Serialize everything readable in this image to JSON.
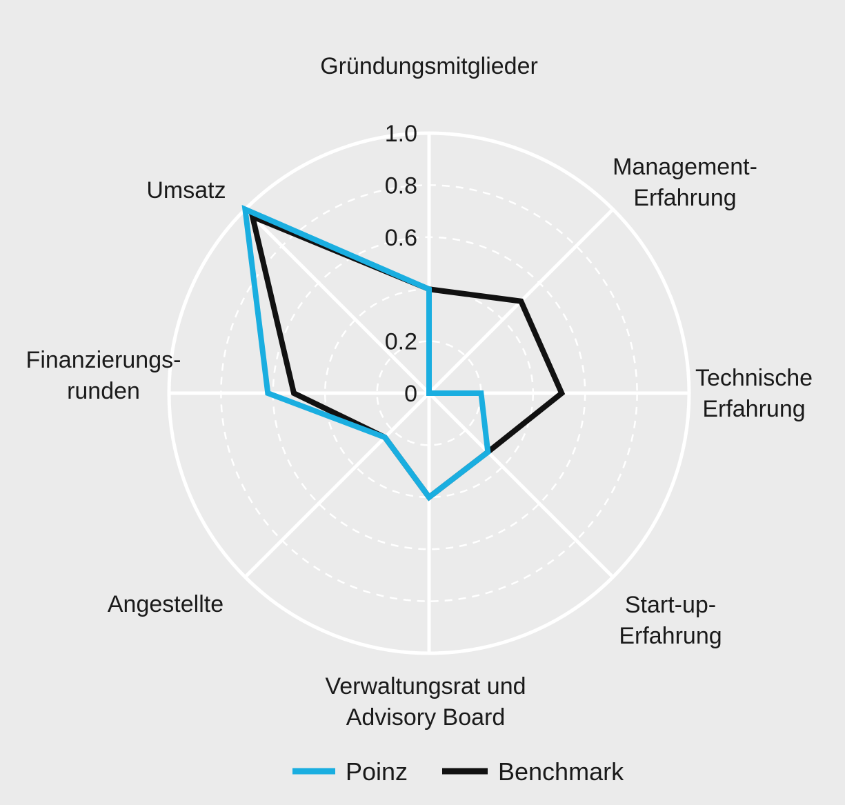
{
  "chart_data": {
    "type": "radar",
    "axes": [
      [
        "Gründungsmitglieder"
      ],
      [
        "Management-",
        "Erfahrung"
      ],
      [
        "Technische",
        "Erfahrung"
      ],
      [
        "Start-up-",
        "Erfahrung"
      ],
      [
        "Verwaltungsrat und",
        "Advisory Board"
      ],
      [
        "Angestellte"
      ],
      [
        "Finanzierungs-",
        "runden"
      ],
      [
        "Umsatz"
      ]
    ],
    "ticks": [
      "0",
      "0.2",
      "0.6",
      "0.8",
      "1.0"
    ],
    "tick_values": [
      0,
      0.2,
      0.6,
      0.8,
      1.0
    ],
    "rlim": [
      0,
      1.0
    ],
    "gridlines": [
      0.2,
      0.4,
      0.6,
      0.8
    ],
    "legend_position": "bottom-center",
    "series": [
      {
        "name": "Poinz",
        "color": "#1aaee0",
        "values": [
          0.4,
          0.0,
          0.2,
          0.32,
          0.4,
          0.24,
          0.62,
          1.0
        ]
      },
      {
        "name": "Benchmark",
        "color": "#111111",
        "values": [
          0.4,
          0.5,
          0.51,
          0.32,
          0.4,
          0.24,
          0.52,
          0.96
        ]
      }
    ]
  }
}
